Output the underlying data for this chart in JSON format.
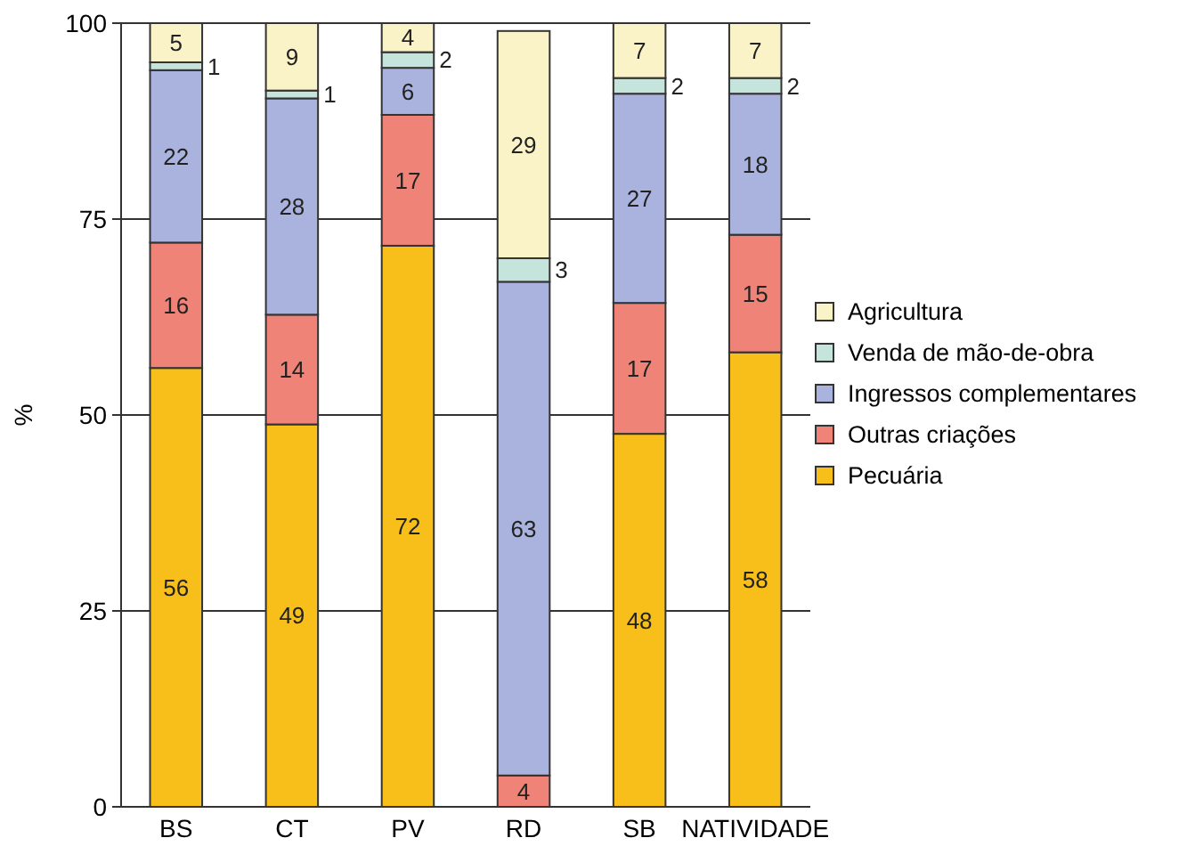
{
  "chart_data": {
    "type": "bar",
    "stacked": true,
    "ylabel": "%",
    "categories": [
      "BS",
      "CT",
      "PV",
      "RD",
      "SB",
      "NATIVIDADE"
    ],
    "ylim": [
      0,
      100
    ],
    "yticks": [
      0,
      25,
      50,
      75,
      100
    ],
    "grid": "y",
    "legend": "right",
    "series": [
      {
        "name": "Pecuária",
        "color": "#f8bf1a",
        "values": [
          56,
          48.8,
          71.6,
          null,
          47.6,
          58
        ],
        "value_labels": [
          "56",
          "49",
          "72",
          null,
          "48",
          "58"
        ]
      },
      {
        "name": "Outras criações",
        "color": "#f08377",
        "values": [
          16,
          14,
          16.7,
          4,
          16.7,
          15
        ],
        "value_labels": [
          "16",
          "14",
          "17",
          "4",
          "17",
          "15"
        ]
      },
      {
        "name": "Ingressos complementares",
        "color": "#aab3dd",
        "values": [
          22,
          27.6,
          6,
          63,
          26.7,
          18
        ],
        "value_labels": [
          "22",
          "28",
          "6",
          "63",
          "27",
          "18"
        ]
      },
      {
        "name": "Venda de mão-de-obra",
        "color": "#c5e5dc",
        "values": [
          1,
          1,
          2,
          3,
          2,
          2
        ],
        "value_labels": [
          "1",
          "1",
          "2",
          "3",
          "2",
          "2"
        ]
      },
      {
        "name": "Agricultura",
        "color": "#fbf3c8",
        "values": [
          5,
          8.6,
          3.7,
          29,
          7,
          7
        ],
        "value_labels": [
          "5",
          "9",
          "4",
          "29",
          "7",
          "7"
        ]
      }
    ]
  }
}
